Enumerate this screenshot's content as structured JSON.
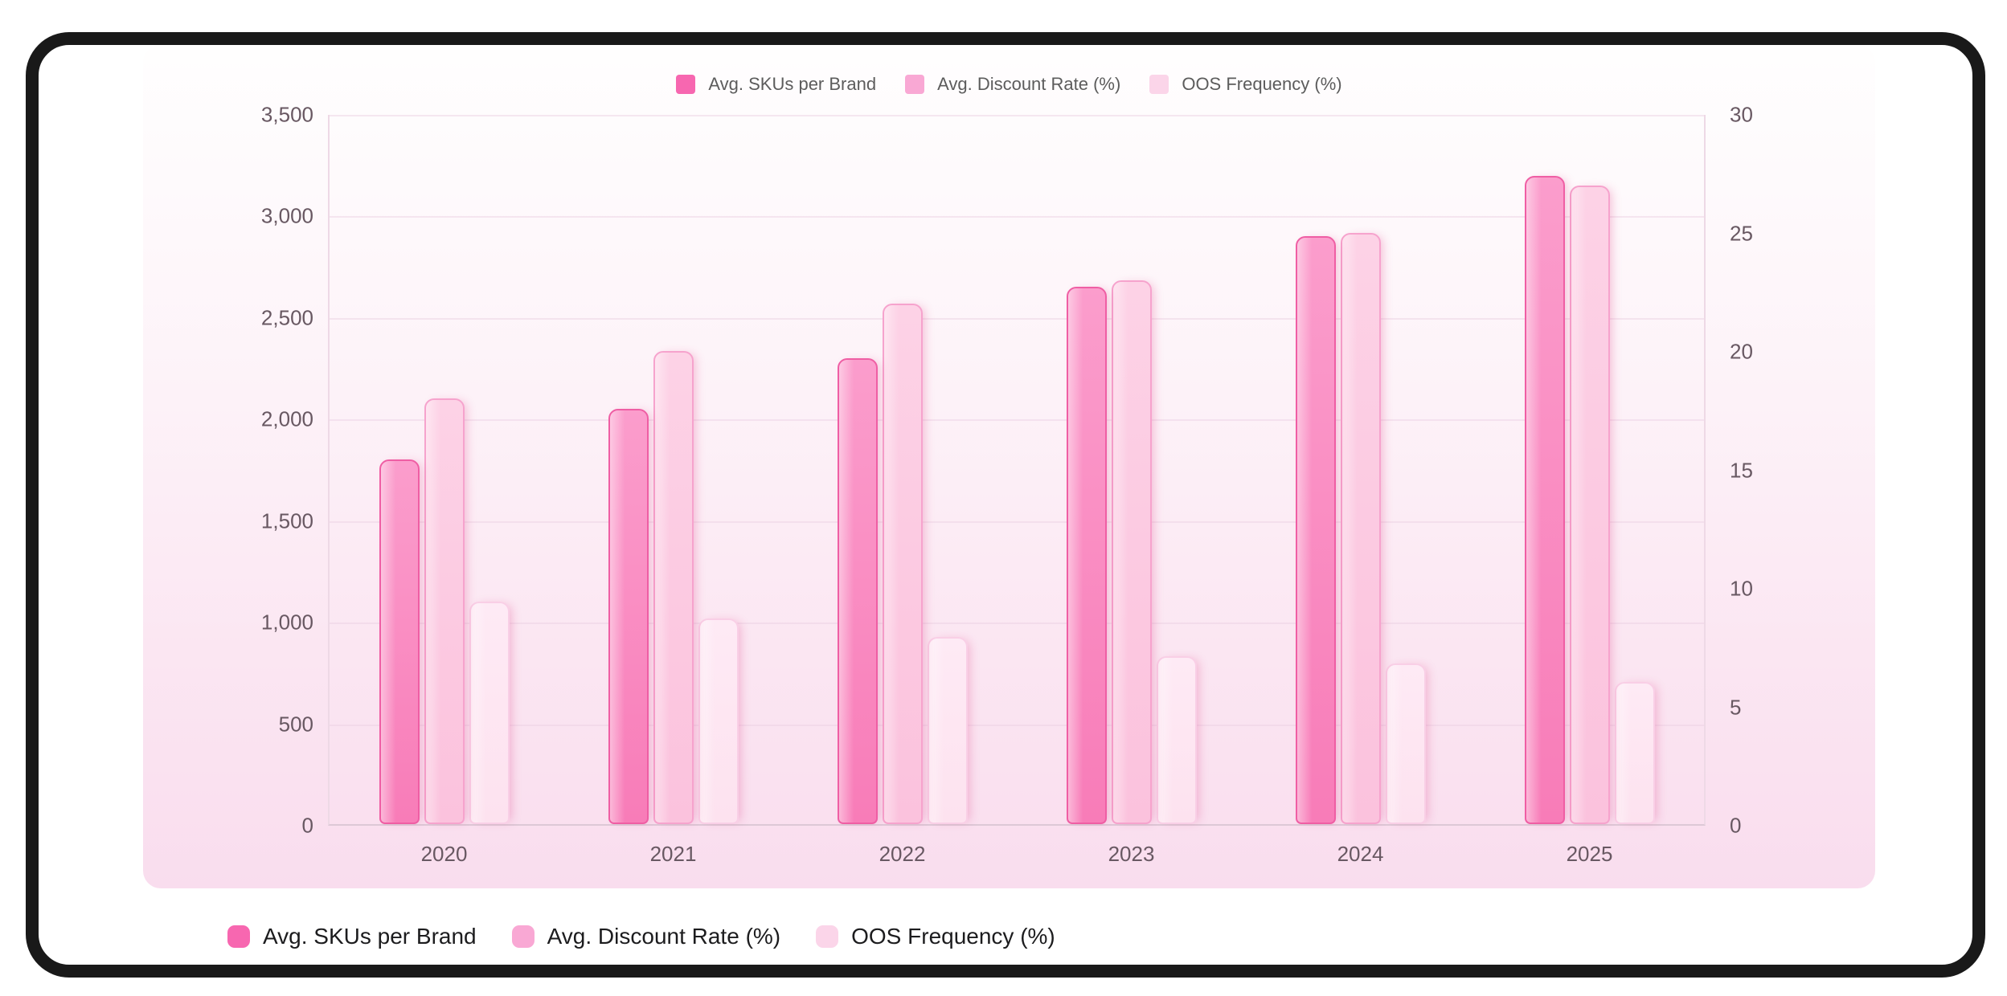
{
  "page": {
    "background": "#ffffff",
    "frame_color": "#191919",
    "card_tint_top": "#fffefe",
    "card_tint_bottom": "#f9ddee"
  },
  "legend": {
    "items": [
      {
        "label": "Avg. SKUs per Brand",
        "swatch": "#f767b0"
      },
      {
        "label": "Avg. Discount Rate (%)",
        "swatch": "#f9a8d4"
      },
      {
        "label": "OOS Frequency (%)",
        "swatch": "#fbd5e9"
      }
    ]
  },
  "chart_data": {
    "type": "bar",
    "categories": [
      "2020",
      "2021",
      "2022",
      "2023",
      "2024",
      "2025"
    ],
    "series": [
      {
        "name": "Avg. SKUs per Brand",
        "axis": "left",
        "values": [
          1800,
          2050,
          2300,
          2650,
          2900,
          3200
        ],
        "fill": "#fb9dcc",
        "fill2": "#f87cb8",
        "border": "#ef5ea4",
        "swatch": "#f767b0"
      },
      {
        "name": "Avg. Discount Rate (%)",
        "axis": "right",
        "values": [
          18,
          20,
          22,
          23,
          25,
          27
        ],
        "fill": "#fdd2e6",
        "fill2": "#fbc2dd",
        "border": "#f6a3cd",
        "swatch": "#f9a8d4"
      },
      {
        "name": "OOS Frequency (%)",
        "axis": "right",
        "values": [
          9.4,
          8.7,
          7.9,
          7.1,
          6.8,
          6.0
        ],
        "fill": "#feeaf5",
        "fill2": "#fde2ef",
        "border": "#f9cfe6",
        "swatch": "#fbd5e9"
      }
    ],
    "left_axis": {
      "min": 0,
      "max": 3500,
      "ticks": [
        "3,500",
        "3,000",
        "2,500",
        "2,000",
        "1,500",
        "1,000",
        "500",
        "0"
      ]
    },
    "right_axis": {
      "min": 0,
      "max": 30,
      "ticks": [
        "30",
        "25",
        "20",
        "15",
        "10",
        "5",
        "0"
      ]
    },
    "grid": true,
    "legend_position": "top-and-bottom"
  }
}
